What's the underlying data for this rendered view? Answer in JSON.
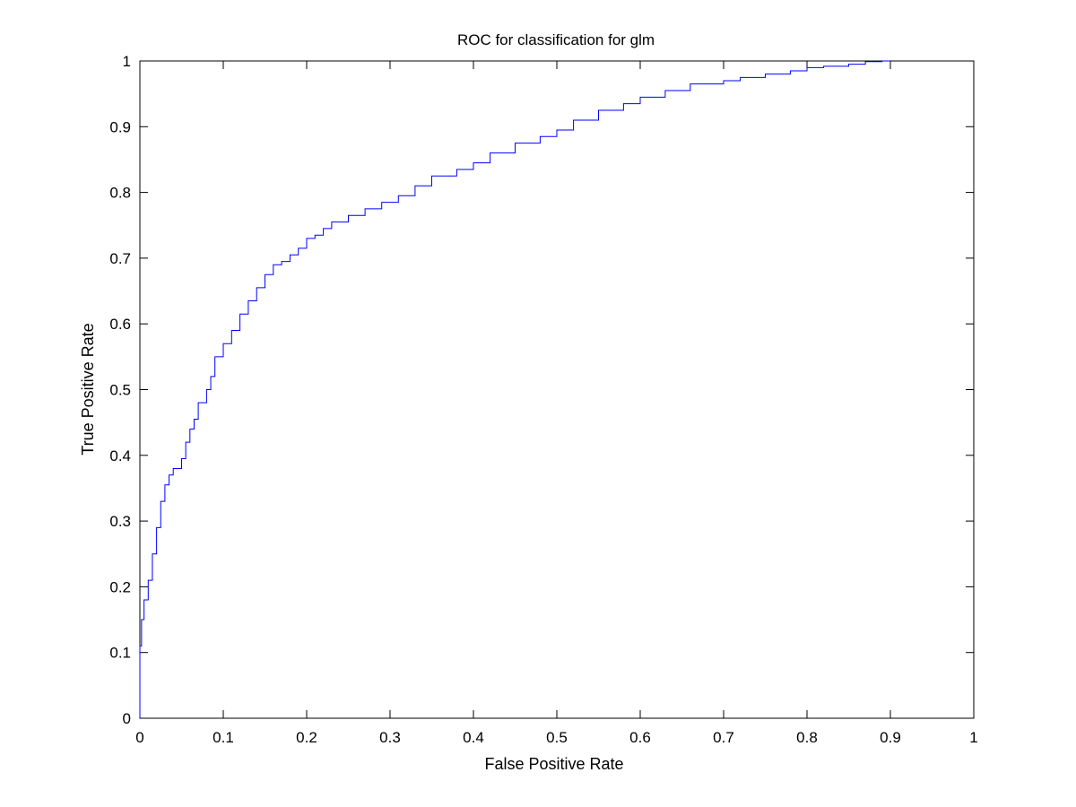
{
  "chart_data": {
    "type": "line",
    "title": "ROC for classification for glm",
    "xlabel": "False Positive Rate",
    "ylabel": "True Positive Rate",
    "xlim": [
      0,
      1
    ],
    "ylim": [
      0,
      1
    ],
    "grid": false,
    "legend": "none",
    "x_ticks": [
      "0",
      "0.1",
      "0.2",
      "0.3",
      "0.4",
      "0.5",
      "0.6",
      "0.7",
      "0.8",
      "0.9",
      "1"
    ],
    "y_ticks": [
      "0",
      "0.1",
      "0.2",
      "0.3",
      "0.4",
      "0.5",
      "0.6",
      "0.7",
      "0.8",
      "0.9",
      "1"
    ],
    "series": [
      {
        "color": "#0000ff",
        "x": [
          0,
          0,
          0.002,
          0.005,
          0.01,
          0.015,
          0.02,
          0.025,
          0.03,
          0.035,
          0.04,
          0.05,
          0.055,
          0.06,
          0.065,
          0.07,
          0.08,
          0.085,
          0.09,
          0.1,
          0.11,
          0.12,
          0.13,
          0.14,
          0.15,
          0.16,
          0.17,
          0.18,
          0.19,
          0.2,
          0.21,
          0.22,
          0.23,
          0.25,
          0.27,
          0.29,
          0.31,
          0.33,
          0.35,
          0.38,
          0.4,
          0.42,
          0.45,
          0.48,
          0.5,
          0.52,
          0.55,
          0.58,
          0.6,
          0.63,
          0.66,
          0.69,
          0.7,
          0.72,
          0.75,
          0.78,
          0.8,
          0.82,
          0.85,
          0.87,
          0.89,
          0.9
        ],
        "y": [
          0,
          0.07,
          0.11,
          0.15,
          0.18,
          0.21,
          0.25,
          0.29,
          0.33,
          0.355,
          0.37,
          0.38,
          0.395,
          0.42,
          0.44,
          0.455,
          0.48,
          0.5,
          0.52,
          0.55,
          0.57,
          0.59,
          0.615,
          0.635,
          0.655,
          0.675,
          0.69,
          0.695,
          0.705,
          0.715,
          0.73,
          0.735,
          0.745,
          0.755,
          0.765,
          0.775,
          0.785,
          0.795,
          0.81,
          0.825,
          0.835,
          0.845,
          0.86,
          0.875,
          0.885,
          0.895,
          0.91,
          0.925,
          0.935,
          0.945,
          0.955,
          0.965,
          0.965,
          0.97,
          0.975,
          0.98,
          0.985,
          0.99,
          0.992,
          0.995,
          0.999,
          1
        ]
      }
    ]
  }
}
